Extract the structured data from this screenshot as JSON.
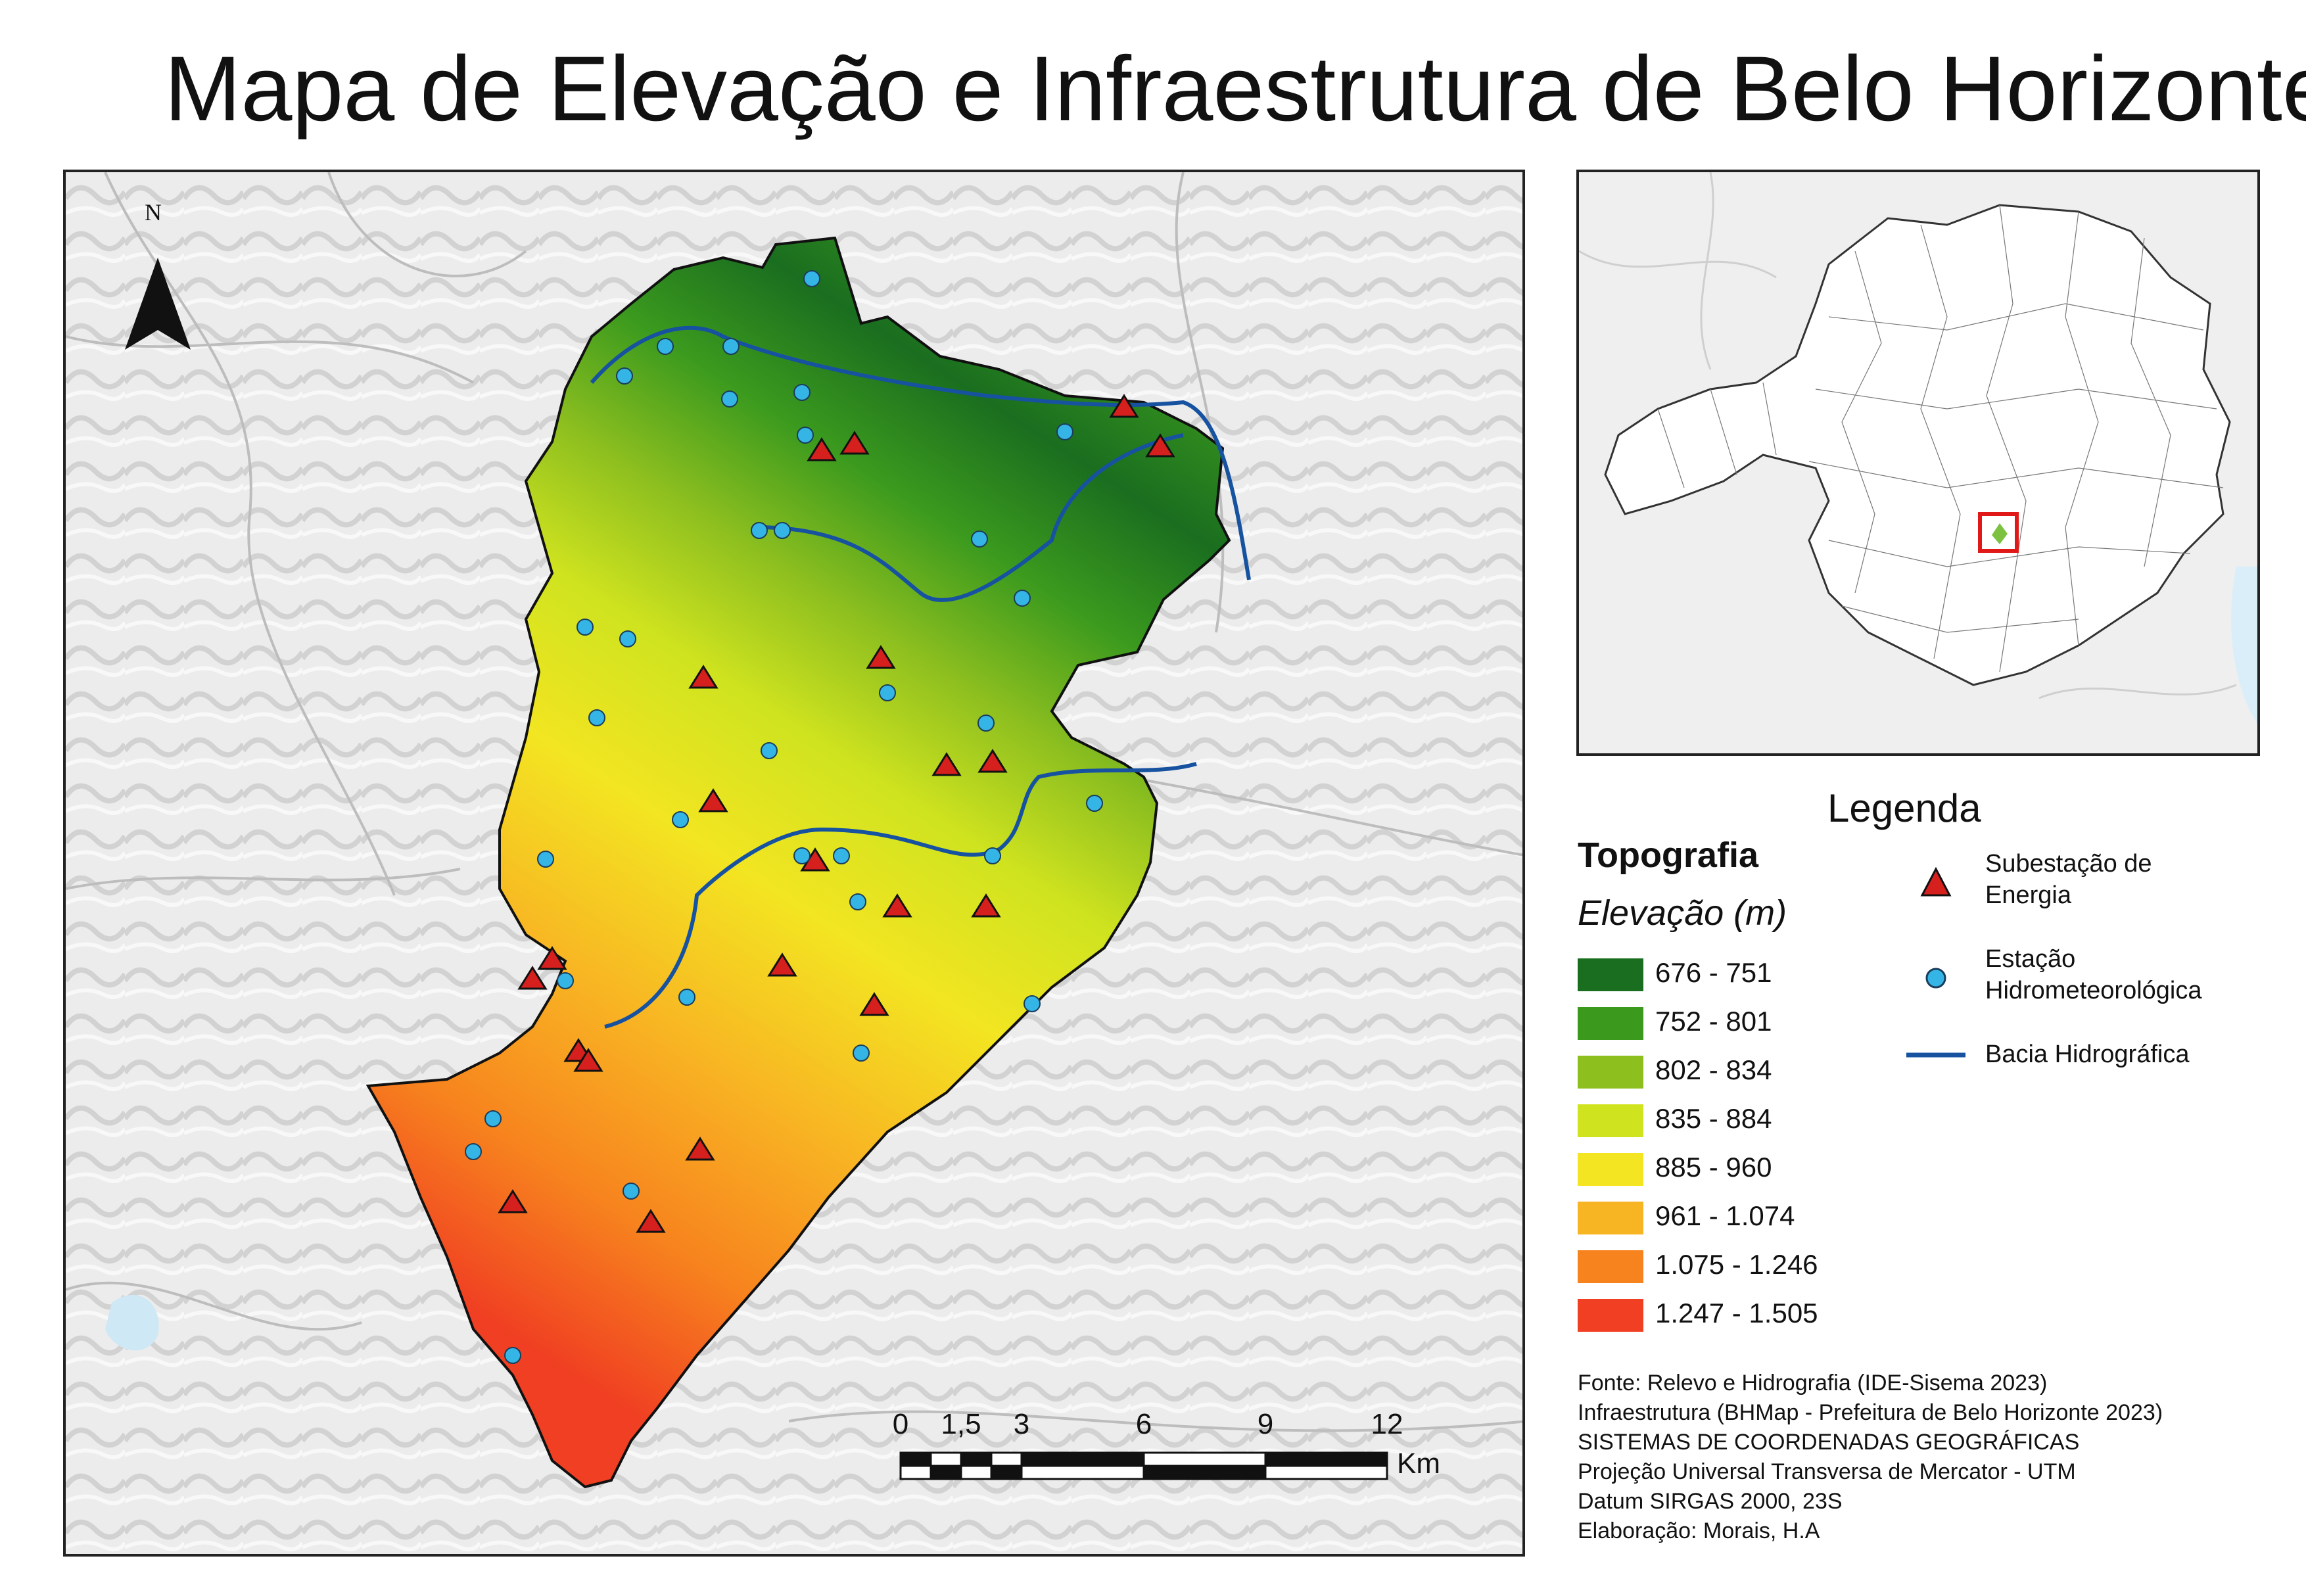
{
  "title": "Mapa de Elevação e Infraestrutura de Belo Horizonte",
  "north_arrow": {
    "label": "N",
    "icon": "north-arrow-icon"
  },
  "legend": {
    "title": "Legenda",
    "topography_title": "Topografia",
    "elevation_title": "Elevação (m)",
    "elevation_classes": [
      {
        "label": "676 - 751",
        "color": "#1a6e1f"
      },
      {
        "label": "752 - 801",
        "color": "#3b9a1e"
      },
      {
        "label": "802 - 834",
        "color": "#8dbf1f"
      },
      {
        "label": "835 - 884",
        "color": "#cfe31f"
      },
      {
        "label": "885 - 960",
        "color": "#f3e521"
      },
      {
        "label": "961 - 1.074",
        "color": "#f8b523"
      },
      {
        "label": "1.075 - 1.246",
        "color": "#f7831e"
      },
      {
        "label": "1.247 - 1.505",
        "color": "#f03f22"
      }
    ],
    "symbols": [
      {
        "label_lines": [
          "Subestação de",
          "Energia"
        ],
        "icon": "substation-triangle-icon",
        "color": "#d6201e"
      },
      {
        "label_lines": [
          "Estação",
          "Hidrometeorológica"
        ],
        "icon": "station-circle-icon",
        "color": "#35b5e5"
      },
      {
        "label_lines": [
          "Bacia Hidrográfica"
        ],
        "icon": "river-line-icon",
        "color": "#1652a0"
      }
    ]
  },
  "sources": [
    "Fonte: Relevo e Hidrografia (IDE-Sisema 2023)",
    "Infraestrutura (BHMap - Prefeitura de Belo Horizonte 2023)",
    "SISTEMAS DE COORDENADAS GEOGRÁFICAS",
    "Projeção Universal Transversa de Mercator - UTM",
    "Datum SIRGAS 2000, 23S",
    "Elaboração: Morais, H.A"
  ],
  "scale_bar": {
    "ticks": [
      "0",
      "1,5",
      "3",
      "6",
      "9",
      "12"
    ],
    "tick_values": [
      0,
      1.5,
      3,
      6,
      9,
      12
    ],
    "unit": "Km"
  }
}
